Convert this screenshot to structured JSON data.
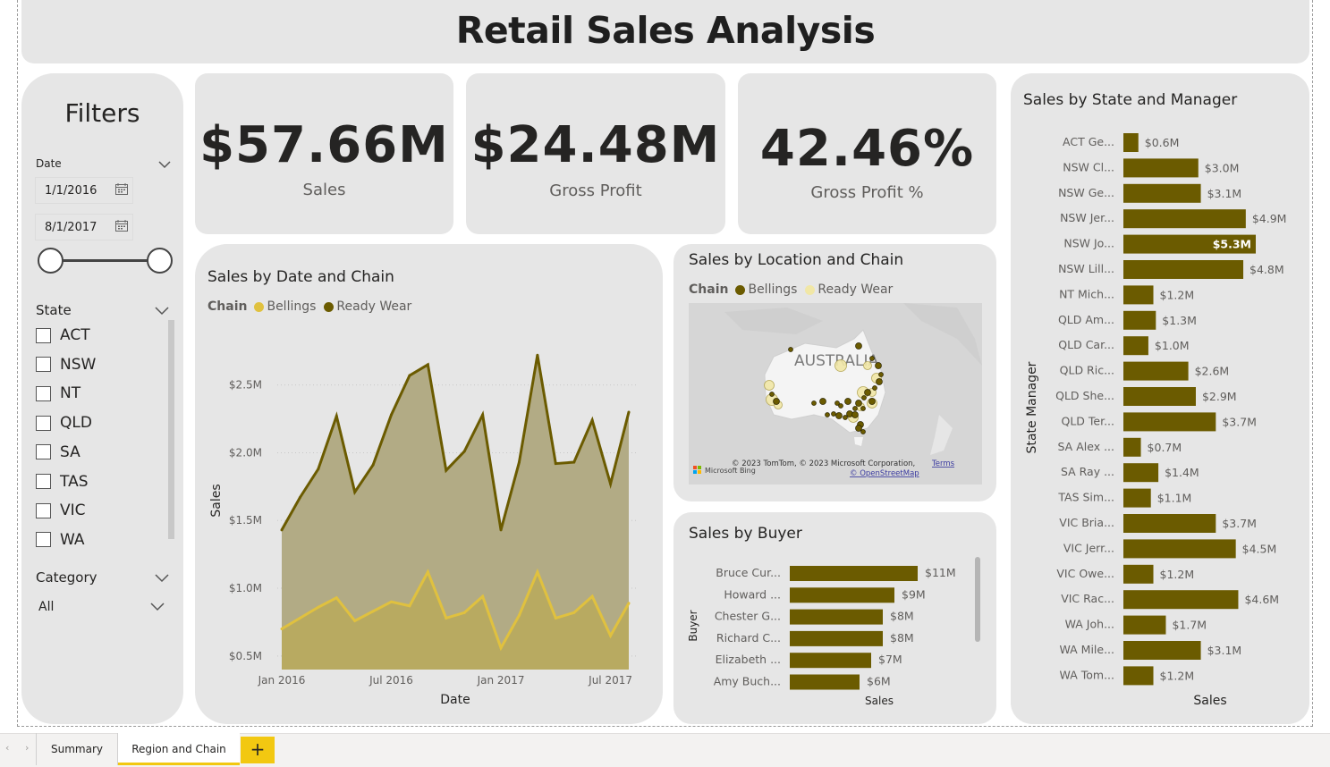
{
  "title": "Retail Sales Analysis",
  "filters": {
    "title": "Filters",
    "date": {
      "label": "Date",
      "start": "1/1/2016",
      "end": "8/1/2017"
    },
    "state": {
      "label": "State",
      "options": [
        "ACT",
        "NSW",
        "NT",
        "QLD",
        "SA",
        "TAS",
        "VIC",
        "WA"
      ]
    },
    "category": {
      "label": "Category",
      "selected": "All"
    }
  },
  "kpis": {
    "sales": {
      "value": "$57.66M",
      "label": "Sales"
    },
    "gross_profit": {
      "value": "$24.48M",
      "label": "Gross Profit"
    },
    "gross_profit_pct": {
      "value": "42.46%",
      "label": "Gross Profit %"
    }
  },
  "colors": {
    "bellings": "#e0c13f",
    "ready_wear": "#6b5b00",
    "bar": "#6b5b00",
    "accent": "#f2c811"
  },
  "map_visual": {
    "title": "Sales by Location and Chain",
    "legend_title": "Chain",
    "legend": [
      "Bellings",
      "Ready Wear"
    ],
    "country_label": "AUSTRALIA",
    "attribution": "© 2023 TomTom, © 2023 Microsoft Corporation,",
    "terms": "Terms",
    "osm": "© OpenStreetMap",
    "bing": "Microsoft Bing"
  },
  "chart_data": [
    {
      "type": "area",
      "title": "Sales by Date and Chain",
      "legend_title": "Chain",
      "xlabel": "Date",
      "ylabel": "Sales",
      "x_ticks": [
        "Jan 2016",
        "Jul 2016",
        "Jan 2017",
        "Jul 2017"
      ],
      "y_ticks": [
        "$0.5M",
        "$1.0M",
        "$1.5M",
        "$2.0M",
        "$2.5M"
      ],
      "ylim": [
        0.4,
        2.9
      ],
      "x": [
        "2016-01",
        "2016-02",
        "2016-03",
        "2016-04",
        "2016-05",
        "2016-06",
        "2016-07",
        "2016-08",
        "2016-09",
        "2016-10",
        "2016-11",
        "2016-12",
        "2017-01",
        "2017-02",
        "2017-03",
        "2017-04",
        "2017-05",
        "2017-06",
        "2017-07",
        "2017-08"
      ],
      "series": [
        {
          "name": "Bellings",
          "values": [
            0.7,
            0.78,
            0.86,
            0.93,
            0.76,
            0.83,
            0.9,
            0.87,
            1.12,
            0.78,
            0.82,
            0.94,
            0.56,
            0.8,
            1.12,
            0.78,
            0.82,
            0.94,
            0.65,
            0.89
          ]
        },
        {
          "name": "Ready Wear",
          "values": [
            1.43,
            1.67,
            1.88,
            2.27,
            1.71,
            1.91,
            2.28,
            2.57,
            2.65,
            1.87,
            2.01,
            2.28,
            1.43,
            1.93,
            2.72,
            1.92,
            1.93,
            2.24,
            1.77,
            2.3
          ]
        }
      ]
    },
    {
      "type": "bar",
      "title": "Sales by Buyer",
      "xlabel": "Sales",
      "ylabel": "Buyer",
      "categories": [
        "Bruce Cur...",
        "Howard ...",
        "Chester G...",
        "Richard C...",
        "Elizabeth ...",
        "Amy Buch..."
      ],
      "values": [
        11,
        9,
        8,
        8,
        7,
        6
      ],
      "labels": [
        "$11M",
        "$9M",
        "$8M",
        "$8M",
        "$7M",
        "$6M"
      ],
      "xlim": [
        0,
        11.5
      ]
    },
    {
      "type": "bar",
      "title": "Sales by State and Manager",
      "xlabel": "Sales",
      "ylabel": "State Manager",
      "categories": [
        "ACT Ge...",
        "NSW Cl...",
        "NSW Ge...",
        "NSW Jer...",
        "NSW Jo...",
        "NSW Lill...",
        "NT Mich...",
        "QLD Am...",
        "QLD Car...",
        "QLD Ric...",
        "QLD She...",
        "QLD Ter...",
        "SA Alex ...",
        "SA Ray ...",
        "TAS Sim...",
        "VIC Bria...",
        "VIC Jerr...",
        "VIC Owe...",
        "VIC Rac...",
        "WA Joh...",
        "WA Mile...",
        "WA Tom..."
      ],
      "values": [
        0.6,
        3.0,
        3.1,
        4.9,
        5.3,
        4.8,
        1.2,
        1.3,
        1.0,
        2.6,
        2.9,
        3.7,
        0.7,
        1.4,
        1.1,
        3.7,
        4.5,
        1.2,
        4.6,
        1.7,
        3.1,
        1.2
      ],
      "labels": [
        "$0.6M",
        "$3.0M",
        "$3.1M",
        "$4.9M",
        "$5.3M",
        "$4.8M",
        "$1.2M",
        "$1.3M",
        "$1.0M",
        "$2.6M",
        "$2.9M",
        "$3.7M",
        "$0.7M",
        "$1.4M",
        "$1.1M",
        "$3.7M",
        "$4.5M",
        "$1.2M",
        "$4.6M",
        "$1.7M",
        "$3.1M",
        "$1.2M"
      ],
      "highlighted": "NSW Jo...",
      "xlim": [
        0,
        5.3
      ]
    }
  ],
  "tabs": {
    "items": [
      "Summary",
      "Region and Chain"
    ],
    "active": "Region and Chain",
    "add_label": "+"
  }
}
